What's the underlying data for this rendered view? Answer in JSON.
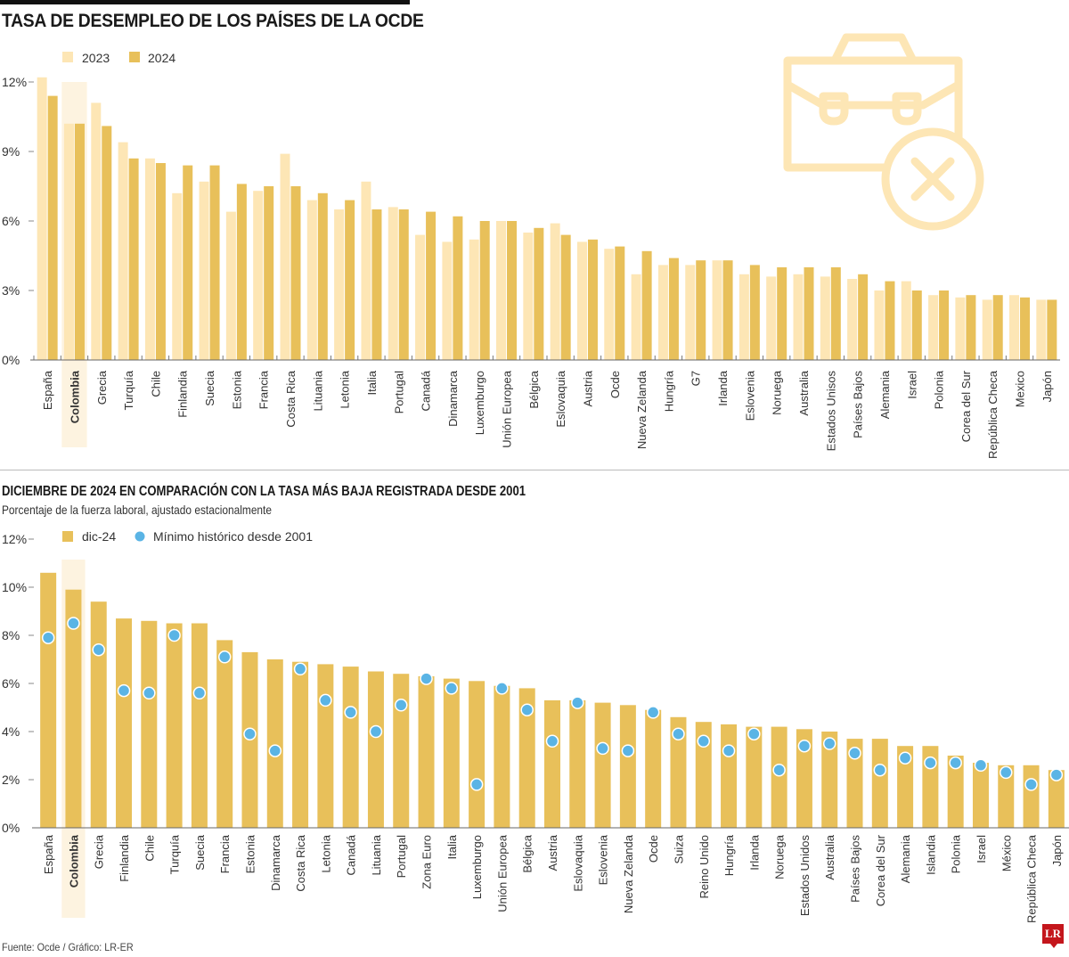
{
  "header": {
    "title": "TASA DE DESEMPLEO DE LOS PAÍSES DE LA OCDE"
  },
  "section2": {
    "title": "DICIEMBRE DE 2024 EN COMPARACIÓN CON LA TASA MÁS BAJA REGISTRADA DESDE 2001",
    "note": "Porcentaje de la fuerza laboral, ajustado estacionalmente"
  },
  "footer": {
    "source": "Fuente: Ocde / Gráfico: LR-ER",
    "logo": "LR"
  },
  "decor": {
    "icon": "briefcase-x-icon"
  },
  "colors": {
    "light_bar": "#fde6b5",
    "dark_bar": "#e8c05a",
    "highlight": "#fdf3e0",
    "dot": "#5ab4e5",
    "icon": "#fde6b5"
  },
  "chart_data": [
    {
      "type": "bar",
      "title": "TASA DE DESEMPLEO DE LOS PAÍSES DE LA OCDE",
      "xlabel": "",
      "ylabel": "",
      "ylim": [
        0,
        12
      ],
      "yticks": [
        "0%",
        "3%",
        "6%",
        "9%",
        "12%"
      ],
      "ytick_values": [
        0,
        3,
        6,
        9,
        12
      ],
      "highlight": "Colombia",
      "legend": [
        "2023",
        "2024"
      ],
      "legend_position": "top-left",
      "categories": [
        "España",
        "Colombia",
        "Grecia",
        "Turquía",
        "Chile",
        "Finlandia",
        "Suecia",
        "Estonia",
        "Francia",
        "Costa Rica",
        "Lituania",
        "Letonia",
        "Italia",
        "Portugal",
        "Canadá",
        "Dinamarca",
        "Luxemburgo",
        "Unión Europea",
        "Bélgica",
        "Eslovaquia",
        "Austria",
        "Ocde",
        "Nueva Zelanda",
        "Hungría",
        "G7",
        "Irlanda",
        "Eslovenia",
        "Noruega",
        "Australia",
        "Estados Unisos",
        "Países Bajos",
        "Alemania",
        "Israel",
        "Polonia",
        "Corea del Sur",
        "República Checa",
        "Mexico",
        "Japón"
      ],
      "series": [
        {
          "name": "2023",
          "values": [
            12.2,
            10.2,
            11.1,
            9.4,
            8.7,
            7.2,
            7.7,
            6.4,
            7.3,
            8.9,
            6.9,
            6.5,
            7.7,
            6.6,
            5.4,
            5.1,
            5.2,
            6.0,
            5.5,
            5.9,
            5.1,
            4.8,
            3.7,
            4.1,
            4.1,
            4.3,
            3.7,
            3.6,
            3.7,
            3.6,
            3.5,
            3.0,
            3.4,
            2.8,
            2.7,
            2.6,
            2.8,
            2.6
          ]
        },
        {
          "name": "2024",
          "values": [
            11.4,
            10.2,
            10.1,
            8.7,
            8.5,
            8.4,
            8.4,
            7.6,
            7.5,
            7.5,
            7.2,
            6.9,
            6.5,
            6.5,
            6.4,
            6.2,
            6.0,
            6.0,
            5.7,
            5.4,
            5.2,
            4.9,
            4.7,
            4.4,
            4.3,
            4.3,
            4.1,
            4.0,
            4.0,
            4.0,
            3.7,
            3.4,
            3.0,
            3.0,
            2.8,
            2.8,
            2.7,
            2.6
          ]
        }
      ]
    },
    {
      "type": "bar",
      "title": "DICIEMBRE DE 2024 EN COMPARACIÓN CON LA TASA MÁS BAJA REGISTRADA DESDE 2001",
      "subtitle": "Porcentaje de la fuerza laboral, ajustado estacionalmente",
      "xlabel": "",
      "ylabel": "",
      "ylim": [
        0,
        12
      ],
      "yticks": [
        "0%",
        "2%",
        "4%",
        "6%",
        "8%",
        "10%",
        "12%"
      ],
      "ytick_values": [
        0,
        2,
        4,
        6,
        8,
        10,
        12
      ],
      "highlight": "Colombia",
      "legend": [
        "dic-24",
        "Mínimo histórico desde 2001"
      ],
      "legend_position": "top-left",
      "categories": [
        "España",
        "Colombia",
        "Grecia",
        "Finlandia",
        "Chile",
        "Turquía",
        "Suecia",
        "Francia",
        "Estonia",
        "Dinamarca",
        "Costa Rica",
        "Letonia",
        "Canadá",
        "Lituania",
        "Portugal",
        "Zona Euro",
        "Italia",
        "Luxemburgo",
        "Unión Europea",
        "Bélgica",
        "Austria",
        "Eslovaquia",
        "Eslovenia",
        "Nueva Zelanda",
        "Ocde",
        "Suiza",
        "Reino Unido",
        "Hungría",
        "Irlanda",
        "Noruega",
        "Estados Unidos",
        "Australia",
        "Países Bajos",
        "Corea del Sur",
        "Alemania",
        "Islandia",
        "Polonia",
        "Israel",
        "México",
        "República Checa",
        "Japón"
      ],
      "series": [
        {
          "name": "dic-24",
          "kind": "bar",
          "values": [
            10.6,
            9.9,
            9.4,
            8.7,
            8.6,
            8.5,
            8.5,
            7.8,
            7.3,
            7.0,
            6.9,
            6.8,
            6.7,
            6.5,
            6.4,
            6.3,
            6.2,
            6.1,
            5.9,
            5.8,
            5.3,
            5.3,
            5.2,
            5.1,
            4.9,
            4.6,
            4.4,
            4.3,
            4.2,
            4.2,
            4.1,
            4.0,
            3.7,
            3.7,
            3.4,
            3.4,
            3.0,
            2.7,
            2.6,
            2.6,
            2.4
          ]
        },
        {
          "name": "Mínimo histórico desde 2001",
          "kind": "point",
          "values": [
            7.9,
            8.5,
            7.4,
            5.7,
            5.6,
            8.0,
            5.6,
            7.1,
            3.9,
            3.2,
            6.6,
            5.3,
            4.8,
            4.0,
            5.1,
            6.2,
            5.8,
            1.8,
            5.8,
            4.9,
            3.6,
            5.2,
            3.3,
            3.2,
            4.8,
            3.9,
            3.6,
            3.2,
            3.9,
            2.4,
            3.4,
            3.5,
            3.1,
            2.4,
            2.9,
            2.7,
            2.7,
            2.6,
            2.3,
            1.8,
            2.2
          ]
        }
      ]
    }
  ]
}
